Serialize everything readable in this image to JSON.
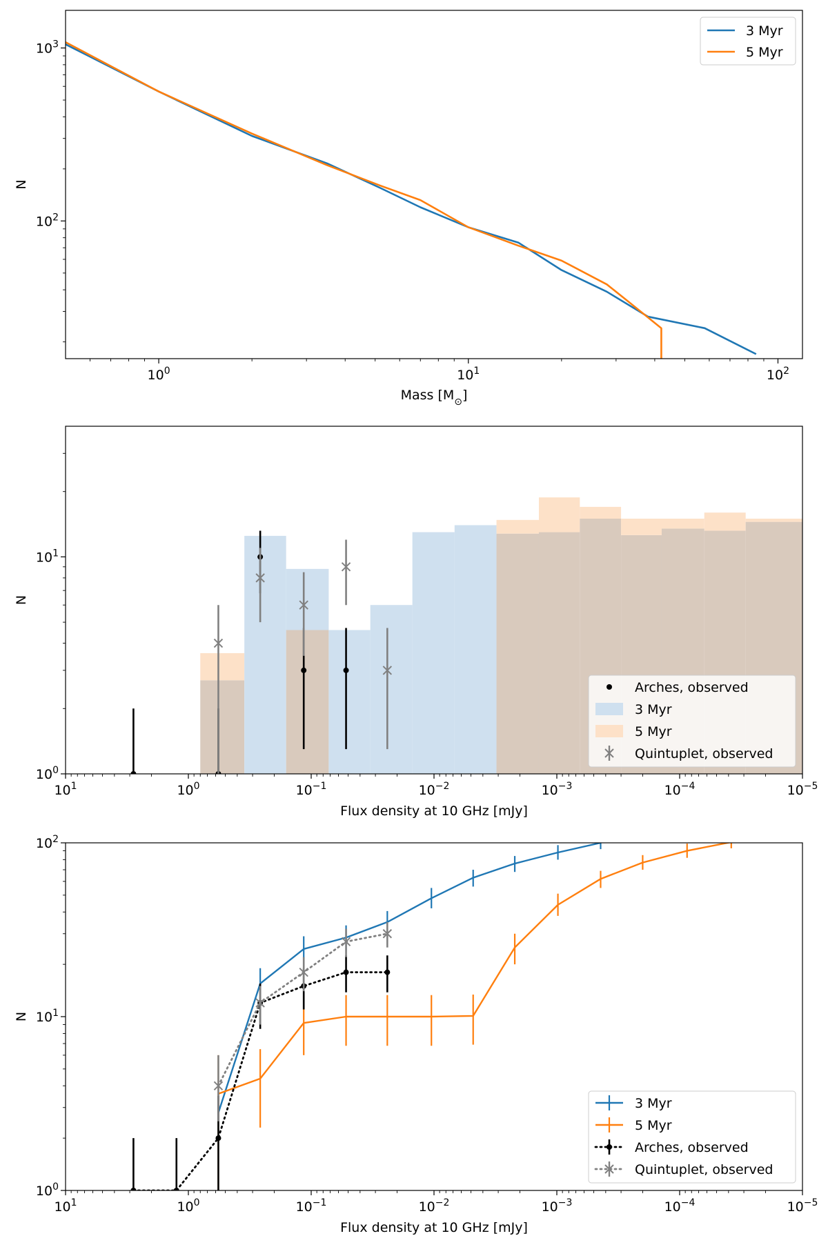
{
  "colors": {
    "blue": "#1f77b4",
    "orange": "#ff7f0e",
    "black": "#000000",
    "grey": "#808080",
    "hist_blue": "#cfe0ef",
    "hist_orange": "#fde1c8",
    "hist_overlap": "#d9cabd"
  },
  "chart_data": [
    {
      "type": "line",
      "title": "",
      "xlabel": "Mass [M$_\\odot$]",
      "xlabel_parts": [
        "Mass [M",
        "⊙",
        "]"
      ],
      "ylabel": "N",
      "xscale": "log",
      "yscale": "log",
      "xlim": [
        0.5,
        120
      ],
      "ylim": [
        16,
        1650
      ],
      "xticks": [
        {
          "value": 1,
          "base": "10",
          "exp": "0"
        },
        {
          "value": 10,
          "base": "10",
          "exp": "1"
        },
        {
          "value": 100,
          "base": "10",
          "exp": "2"
        }
      ],
      "yticks": [
        {
          "value": 100,
          "base": "10",
          "exp": "2"
        },
        {
          "value": 1000,
          "base": "10",
          "exp": "3"
        }
      ],
      "legend": {
        "position": "upper right",
        "entries": [
          "3 Myr",
          "5 Myr"
        ]
      },
      "series": [
        {
          "name": "3 Myr",
          "color": "#1f77b4",
          "x": [
            0.5,
            1.0,
            2.0,
            3.5,
            5.2,
            7.0,
            10.0,
            14.5,
            20.0,
            28.0,
            38.0,
            58.0,
            85.0
          ],
          "y": [
            1050,
            560,
            310,
            215,
            155,
            120,
            92,
            75,
            52,
            39,
            28,
            24,
            17
          ]
        },
        {
          "name": "5 Myr",
          "color": "#ff7f0e",
          "x": [
            0.5,
            1.0,
            2.0,
            3.5,
            5.2,
            7.0,
            10.0,
            14.5,
            20.0,
            28.0,
            33.0,
            42.0,
            42.0
          ],
          "y": [
            1080,
            560,
            320,
            210,
            160,
            132,
            92,
            72,
            59,
            43,
            34,
            24,
            8
          ]
        }
      ]
    },
    {
      "type": "bar",
      "title": "",
      "xlabel": "Flux density at 10 GHz [mJy]",
      "ylabel": "N",
      "xscale": "log (reversed)",
      "yscale": "log",
      "xlim": [
        10,
        1e-05
      ],
      "ylim": [
        1,
        40
      ],
      "xticks": [
        {
          "value": 10,
          "base": "10",
          "exp": "1"
        },
        {
          "value": 1,
          "base": "10",
          "exp": "0"
        },
        {
          "value": 0.1,
          "base": "10",
          "exp": "−1"
        },
        {
          "value": 0.01,
          "base": "10",
          "exp": "−2"
        },
        {
          "value": 0.001,
          "base": "10",
          "exp": "−3"
        },
        {
          "value": 0.0001,
          "base": "10",
          "exp": "−4"
        },
        {
          "value": 1e-05,
          "base": "10",
          "exp": "−5"
        }
      ],
      "yticks": [
        {
          "value": 1,
          "base": "10",
          "exp": "0"
        },
        {
          "value": 10,
          "base": "10",
          "exp": "1"
        }
      ],
      "legend": {
        "position": "lower right",
        "entries": [
          "Arches, observed",
          "3 Myr",
          "5 Myr",
          "Quintuplet, observed"
        ]
      },
      "bin_edges": [
        0.8,
        0.35,
        0.16,
        0.072,
        0.033,
        0.015,
        0.0068,
        0.0031,
        0.0014,
        0.00065,
        0.0003,
        0.00014,
        6.3e-05,
        2.9e-05,
        1e-05
      ],
      "series": [
        {
          "name": "3 Myr",
          "color": "#1f77b4",
          "values": [
            2.7,
            12.5,
            8.8,
            4.6,
            6.0,
            13.0,
            14.0,
            12.8,
            13.0,
            15.0,
            12.6,
            13.5,
            13.2,
            14.5
          ]
        },
        {
          "name": "5 Myr",
          "color": "#ff7f0e",
          "values": [
            3.6,
            0,
            4.6,
            0,
            0,
            0,
            0,
            14.8,
            18.8,
            17.0,
            15.0,
            15.0,
            16.0,
            15.0
          ]
        },
        {
          "name": "Arches, observed",
          "color": "#000000",
          "marker": "dot",
          "x": [
            2.8,
            0.57,
            0.26,
            0.115,
            0.052
          ],
          "y": [
            1,
            1,
            10,
            3,
            3
          ],
          "yerr_lo": [
            1.0,
            1.0,
            6.8,
            1.3,
            1.3
          ],
          "yerr_hi": [
            2.0,
            2.0,
            13.2,
            4.7,
            4.7
          ]
        },
        {
          "name": "Quintuplet, observed",
          "color": "#808080",
          "marker": "x",
          "x": [
            0.57,
            0.26,
            0.115,
            0.052,
            0.024
          ],
          "y": [
            4,
            8,
            6,
            9,
            3
          ],
          "yerr_lo": [
            1.0,
            5.0,
            3.5,
            6.0,
            1.3
          ],
          "yerr_hi": [
            6.0,
            11.0,
            8.5,
            12.0,
            4.7
          ]
        }
      ]
    },
    {
      "type": "line",
      "title": "",
      "xlabel": "Flux density at 10 GHz [mJy]",
      "ylabel": "N",
      "xscale": "log (reversed)",
      "yscale": "log",
      "xlim": [
        10,
        1e-05
      ],
      "ylim": [
        1,
        100
      ],
      "xticks": [
        {
          "value": 10,
          "base": "10",
          "exp": "1"
        },
        {
          "value": 1,
          "base": "10",
          "exp": "0"
        },
        {
          "value": 0.1,
          "base": "10",
          "exp": "−1"
        },
        {
          "value": 0.01,
          "base": "10",
          "exp": "−2"
        },
        {
          "value": 0.001,
          "base": "10",
          "exp": "−3"
        },
        {
          "value": 0.0001,
          "base": "10",
          "exp": "−4"
        },
        {
          "value": 1e-05,
          "base": "10",
          "exp": "−5"
        }
      ],
      "yticks": [
        {
          "value": 1,
          "base": "10",
          "exp": "0"
        },
        {
          "value": 10,
          "base": "10",
          "exp": "1"
        },
        {
          "value": 100,
          "base": "10",
          "exp": "2"
        }
      ],
      "legend": {
        "position": "lower right",
        "entries": [
          "3 Myr",
          "5 Myr",
          "Arches, observed",
          "Quintuplet, observed"
        ]
      },
      "series": [
        {
          "name": "3 Myr",
          "color": "#1f77b4",
          "style": "solid",
          "x": [
            0.57,
            0.26,
            0.115,
            0.052,
            0.024,
            0.0105,
            0.0048,
            0.0022,
            0.00098,
            0.00044
          ],
          "y": [
            2.8,
            15.5,
            24.5,
            28.5,
            35,
            48,
            63,
            76,
            88,
            100
          ],
          "yerr_lo": [
            2.2,
            12.5,
            20.5,
            24,
            30,
            42,
            56,
            68,
            80,
            92
          ],
          "yerr_hi": [
            3.6,
            19,
            29,
            33.5,
            40.5,
            55,
            70,
            84,
            97,
            109
          ]
        },
        {
          "name": "5 Myr",
          "color": "#ff7f0e",
          "style": "solid",
          "x": [
            0.57,
            0.26,
            0.115,
            0.052,
            0.024,
            0.0105,
            0.0048,
            0.0022,
            0.00098,
            0.00044,
            0.0002,
            8.7e-05,
            3.8e-05
          ],
          "y": [
            3.6,
            4.4,
            9.2,
            10,
            10,
            10,
            10.1,
            25,
            44,
            62,
            77,
            90,
            101
          ],
          "yerr_lo": [
            1.0,
            2.3,
            6.0,
            6.8,
            6.8,
            6.8,
            6.9,
            20,
            38,
            55,
            70,
            82,
            93
          ],
          "yerr_hi": [
            6.0,
            6.5,
            12.5,
            13.3,
            13.3,
            13.3,
            13.4,
            30,
            51,
            69,
            85,
            99,
            110
          ]
        },
        {
          "name": "Arches, observed",
          "color": "#000000",
          "style": "dotted",
          "marker": "dot",
          "x": [
            2.8,
            1.25,
            0.57,
            0.26,
            0.115,
            0.052,
            0.024
          ],
          "y": [
            1,
            1,
            2,
            12,
            15,
            18,
            18
          ],
          "yerr_lo": [
            1.0,
            1.0,
            1.0,
            8.5,
            11,
            13.8,
            13.8
          ],
          "yerr_hi": [
            2.0,
            2.0,
            3.5,
            15.5,
            19,
            22.5,
            22.5
          ]
        },
        {
          "name": "Quintuplet, observed",
          "color": "#808080",
          "style": "dotted",
          "marker": "x",
          "x": [
            0.57,
            0.26,
            0.115,
            0.052,
            0.024
          ],
          "y": [
            4,
            12,
            18,
            27,
            30
          ],
          "yerr_lo": [
            2.5,
            9,
            14,
            22,
            25
          ],
          "yerr_hi": [
            6.0,
            15,
            22,
            32,
            35
          ]
        }
      ]
    }
  ]
}
